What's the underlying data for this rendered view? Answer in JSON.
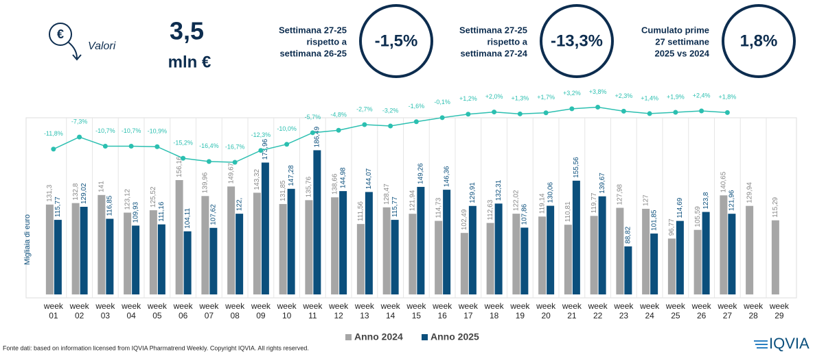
{
  "header": {
    "title": "Valori",
    "value": "3,5",
    "unit": "mln €",
    "icon": "€"
  },
  "kpis": [
    {
      "label": [
        "Settimana 27-25",
        "rispetto a",
        "settimana 26-25"
      ],
      "value": "-1,5%"
    },
    {
      "label": [
        "Settimana 27-25",
        "rispetto a",
        "settimana 27-24"
      ],
      "value": "-13,3%"
    },
    {
      "label": [
        "Cumulato prime",
        "27 settimane",
        "2025 vs 2024"
      ],
      "value": "1,8%"
    }
  ],
  "chart_data": {
    "type": "bar",
    "y_axis_label": "Migliaia di euro",
    "categories": [
      "week 01",
      "week 02",
      "week 03",
      "week 04",
      "week 05",
      "week 06",
      "week 07",
      "week 08",
      "week 09",
      "week 10",
      "week 11",
      "week 12",
      "week 13",
      "week 14",
      "week 15",
      "week 16",
      "week 17",
      "week 18",
      "week 19",
      "week 20",
      "week 21",
      "week 22",
      "week 23",
      "week 24",
      "week 25",
      "week 26",
      "week 27",
      "week 28",
      "week 29"
    ],
    "ylim": [
      40,
      200
    ],
    "y2lim": [
      -20,
      8
    ],
    "series": [
      {
        "name": "Anno 2024",
        "color": "#a6a6a6",
        "values": [
          131.3,
          132.8,
          141,
          123.12,
          125.52,
          156.16,
          139.96,
          149.67,
          143.32,
          131.85,
          135.76,
          138.66,
          111.56,
          128.47,
          121.94,
          114.73,
          102.49,
          112.63,
          122.02,
          119.14,
          110.81,
          119.77,
          127.98,
          127,
          96.77,
          105.59,
          140.65,
          129.94,
          115.29
        ],
        "value_labels": [
          "131,3",
          "132,8",
          "141",
          "123,12",
          "125,52",
          "156,16",
          "139,96",
          "149,67",
          "143,32",
          "131,85",
          "135,76",
          "138,66",
          "111,56",
          "128,47",
          "121,94",
          "114,73",
          "102,49",
          "112,63",
          "122,02",
          "119,14",
          "110,81",
          "119,77",
          "127,98",
          "127",
          "96,77",
          "105,59",
          "140,65",
          "129,94",
          "115,29"
        ]
      },
      {
        "name": "Anno 2025",
        "color": "#0b4f7c",
        "values": [
          115.77,
          129.02,
          116.85,
          109.93,
          111.16,
          104.11,
          107.62,
          122,
          173.96,
          147.28,
          186.49,
          144.98,
          144.07,
          115.77,
          149.26,
          146.36,
          129.91,
          132.31,
          107.86,
          130.06,
          155.56,
          139.67,
          88.82,
          101.85,
          114.69,
          123.8,
          121.96,
          null,
          null
        ],
        "value_labels": [
          "115,77",
          "129,02",
          "116,85",
          "109,93",
          "111,16",
          "104,11",
          "107,62",
          "122,",
          "173,96",
          "147,28",
          "186,49",
          "144,98",
          "144,07",
          "115,77",
          "149,26",
          "146,36",
          "129,91",
          "132,31",
          "107,86",
          "130,06",
          "155,56",
          "139,67",
          "88,82",
          "101,85",
          "114,69",
          "123,8",
          "121,96",
          null,
          null
        ]
      },
      {
        "type": "line",
        "axis": "y2",
        "color": "#2bbfb0",
        "values": [
          -11.8,
          -7.3,
          -10.7,
          -10.7,
          -10.9,
          -15.2,
          -16.4,
          -16.7,
          -12.3,
          -10.0,
          -5.7,
          -4.8,
          -2.7,
          -3.2,
          -1.6,
          -0.1,
          1.2,
          2.0,
          1.3,
          1.7,
          3.2,
          3.8,
          2.3,
          1.4,
          1.9,
          2.4,
          1.8,
          null,
          null
        ],
        "value_labels": [
          "-11,8%",
          "-7,3%",
          "-10,7%",
          "-10,7%",
          "-10,9%",
          "-15,2%",
          "-16,4%",
          "-16,7%",
          "-12,3%",
          "-10,0%",
          "-5,7%",
          "-4,8%",
          "-2,7%",
          "-3,2%",
          "-1,6%",
          "-0,1%",
          "+1,2%",
          "+2,0%",
          "+1,3%",
          "+1,7%",
          "+3,2%",
          "+3,8%",
          "+2,3%",
          "+1,4%",
          "+1,9%",
          "+2,4%",
          "+1,8%",
          null,
          null
        ]
      }
    ]
  },
  "source": "Fonte dati: based on information licensed from IQVIA Pharmatrend Weekly. Copyright IQVIA. All rights reserved.",
  "logo": "IQVIA"
}
